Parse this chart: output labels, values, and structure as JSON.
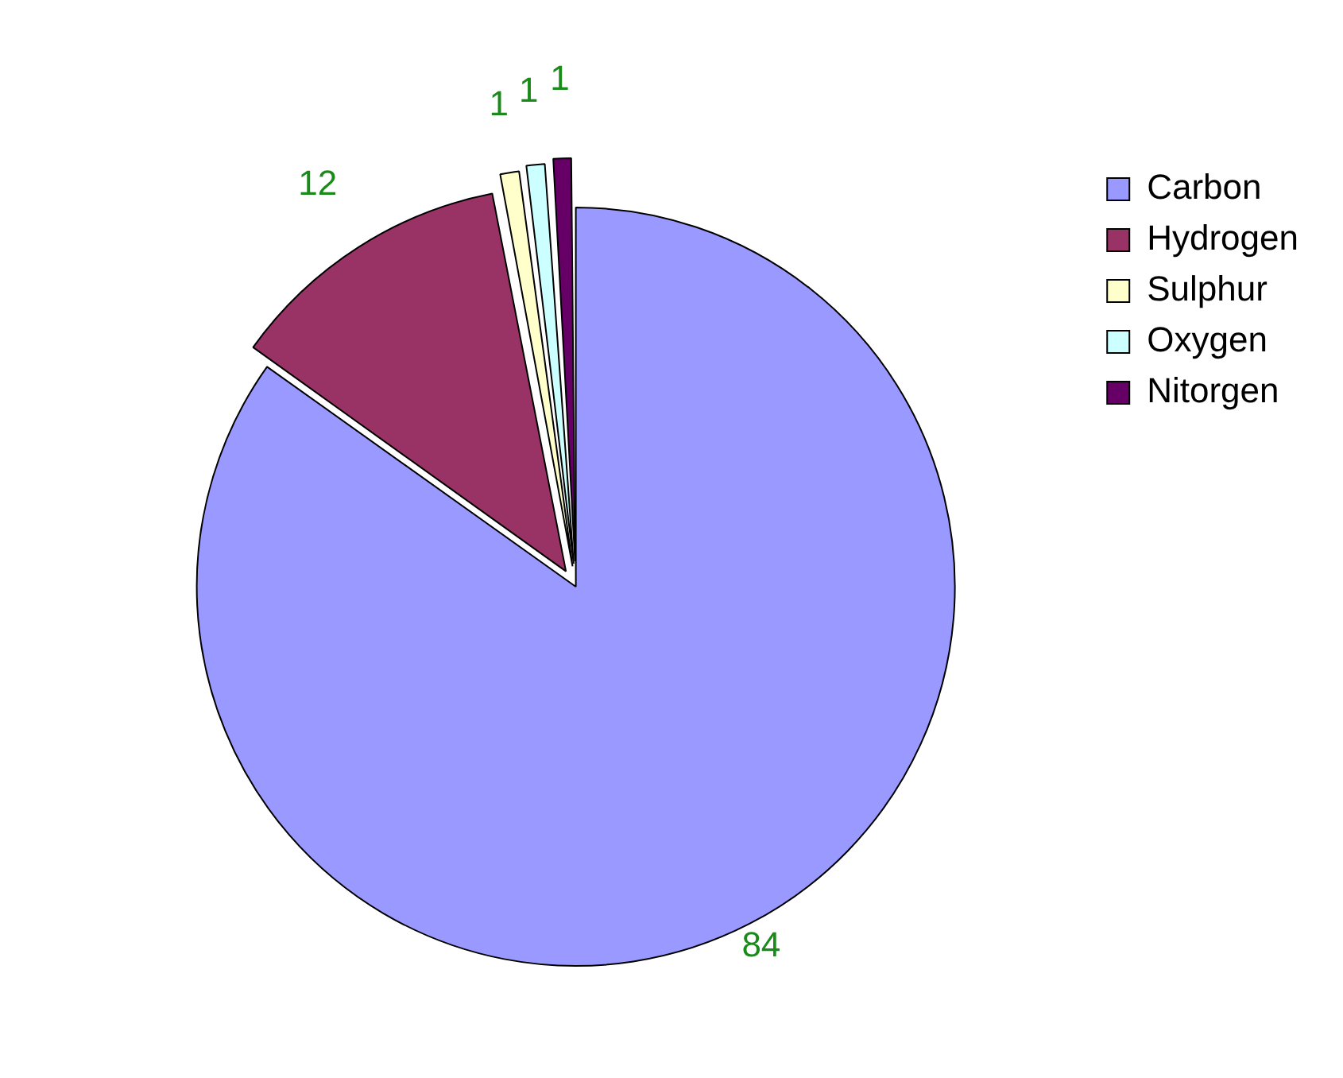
{
  "chart_data": {
    "type": "pie",
    "categories": [
      "Carbon",
      "Hydrogen",
      "Sulphur",
      "Oxygen",
      "Nitorgen"
    ],
    "values": [
      84,
      12,
      1,
      1,
      1
    ],
    "colors": [
      "#9999ff",
      "#993366",
      "#ffffcc",
      "#ccffff",
      "#660066"
    ],
    "data_labels": true,
    "legend": "right"
  }
}
